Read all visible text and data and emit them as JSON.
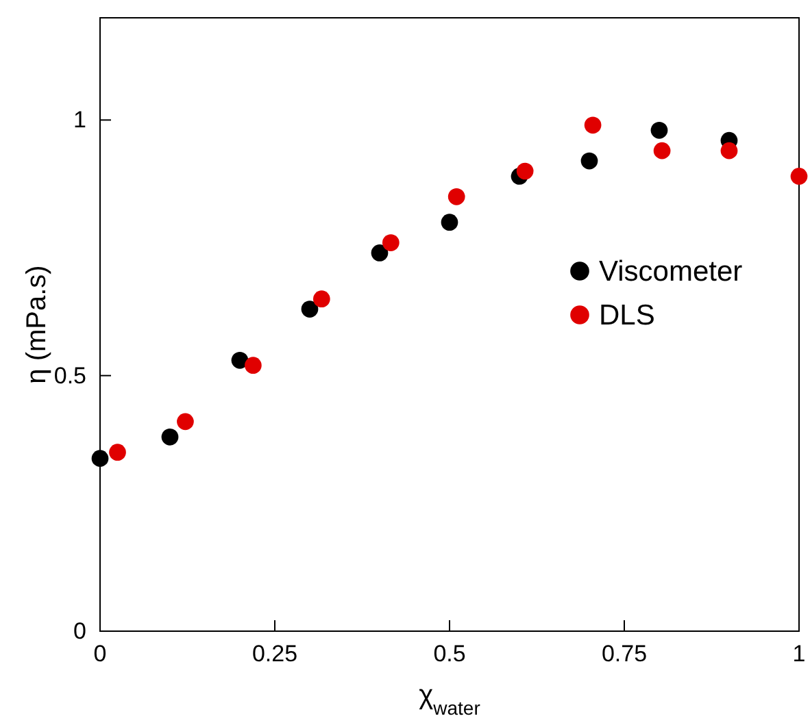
{
  "chart_data": {
    "type": "scatter",
    "xlabel": "χ$_{water}$",
    "ylabel": "η (mPa.s)",
    "xlim": [
      0,
      1
    ],
    "ylim": [
      0,
      1.2
    ],
    "xticks": [
      0,
      0.25,
      0.5,
      0.75,
      1
    ],
    "yticks": [
      0,
      0.5,
      1
    ],
    "grid": false,
    "legend": "right",
    "marker": "circle",
    "series": [
      {
        "name": "Viscometer",
        "color": "#000000",
        "x": [
          0,
          0.1,
          0.2,
          0.3,
          0.4,
          0.5,
          0.6,
          0.7,
          0.8,
          0.9
        ],
        "values": [
          0.338,
          0.38,
          0.53,
          0.63,
          0.74,
          0.8,
          0.89,
          0.92,
          0.98,
          0.96
        ]
      },
      {
        "name": "DLS",
        "color": "#e00000",
        "x": [
          0.025,
          0.122,
          0.219,
          0.317,
          0.416,
          0.51,
          0.608,
          0.705,
          0.804,
          0.9,
          1
        ],
        "values": [
          0.35,
          0.41,
          0.52,
          0.65,
          0.76,
          0.85,
          0.9,
          0.99,
          0.94,
          0.94,
          0.89
        ]
      }
    ]
  }
}
